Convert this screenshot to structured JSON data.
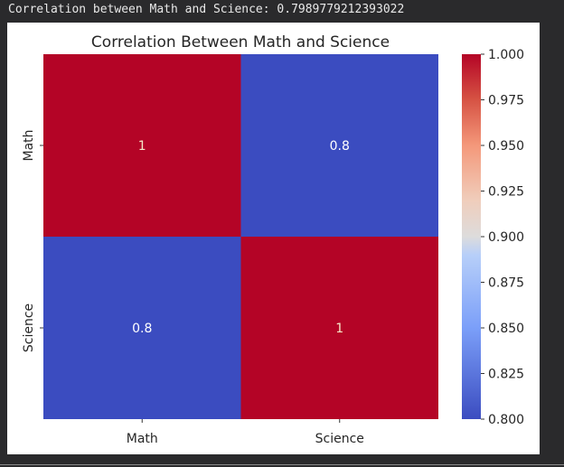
{
  "output_line": "Correlation between Math and Science: 0.7989779212393022",
  "colors": {
    "red": "#b40426",
    "blue": "#3b4cc0"
  },
  "chart_data": {
    "type": "heatmap",
    "title": "Correlation Between Math and Science",
    "x_categories": [
      "Math",
      "Science"
    ],
    "y_categories": [
      "Math",
      "Science"
    ],
    "values": [
      [
        1,
        0.7989779212393022
      ],
      [
        0.7989779212393022,
        1
      ]
    ],
    "annotations": [
      [
        "1",
        "0.8"
      ],
      [
        "0.8",
        "1"
      ]
    ],
    "colormap": "coolwarm",
    "colorbar": {
      "range": [
        0.8,
        1.0
      ],
      "ticks": [
        "0.800",
        "0.825",
        "0.850",
        "0.875",
        "0.900",
        "0.925",
        "0.950",
        "0.975",
        "1.000"
      ]
    }
  }
}
